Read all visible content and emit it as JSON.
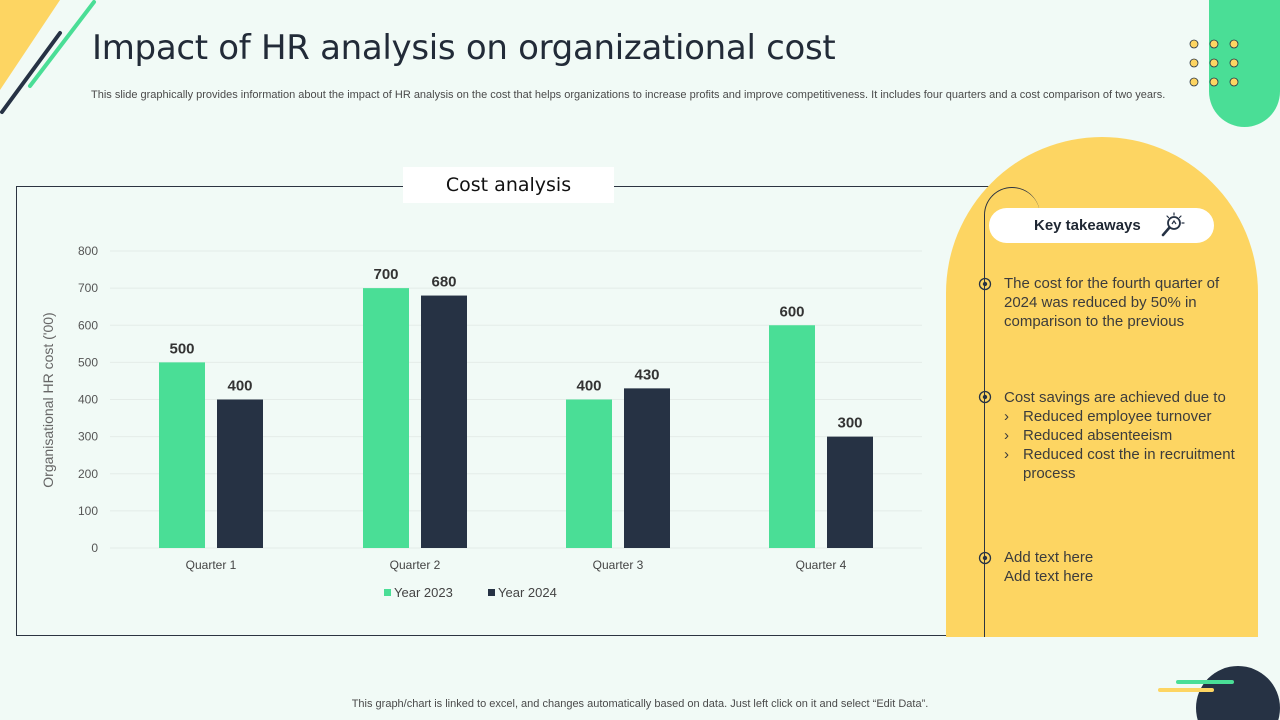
{
  "header": {
    "title": "Impact of HR analysis on organizational cost",
    "subtitle": "This slide graphically provides information about the impact of HR analysis on the cost that helps organizations to increase profits and improve competitiveness. It includes four quarters and a cost comparison of two years."
  },
  "colors": {
    "background": "#f1faf6",
    "green": "#4ade96",
    "navy": "#263244",
    "yellow": "#fdd562",
    "grid": "#e4ece8"
  },
  "chart_title": "Cost analysis",
  "chart_data": {
    "type": "bar",
    "categories": [
      "Quarter 1",
      "Quarter 2",
      "Quarter 3",
      "Quarter 4"
    ],
    "series": [
      {
        "name": "Year 2023",
        "values": [
          500,
          700,
          400,
          600
        ],
        "color": "#4ade96"
      },
      {
        "name": "Year 2024",
        "values": [
          400,
          680,
          430,
          300
        ],
        "color": "#263244"
      }
    ],
    "title": "Cost analysis",
    "xlabel": "",
    "ylabel": "Organisational HR cost ('00)",
    "ylim": [
      0,
      800
    ],
    "yticks": [
      0,
      100,
      200,
      300,
      400,
      500,
      600,
      700,
      800
    ],
    "grid": true,
    "legend": "bottom-center"
  },
  "takeaways": {
    "heading": "Key takeaways",
    "icon": "lightbulb-magnifier-icon",
    "items": [
      {
        "text": "The cost for the fourth quarter of 2024 was reduced by 50% in comparison to the previous"
      },
      {
        "text": "Cost savings are achieved due to",
        "subitems": [
          "Reduced employee turnover",
          "Reduced absenteeism",
          "Reduced cost the in recruitment process"
        ]
      },
      {
        "text": "Add text here",
        "text2": "Add text here"
      }
    ]
  },
  "footer": {
    "note": "This graph/chart is linked to excel,  and changes automatically based on data. Just left click on it and select “Edit Data”."
  }
}
